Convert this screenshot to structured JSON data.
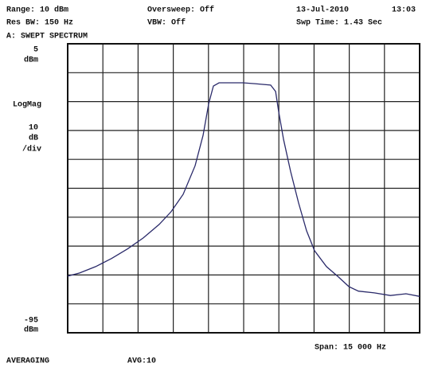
{
  "chart_data": {
    "type": "line",
    "header": {
      "range": "Range: 10 dBm",
      "oversweep": "Oversweep: Off",
      "date": "13-Jul-2010",
      "time": "13:03",
      "res_bw": "Res BW: 150 Hz",
      "vbw": "VBW: Off",
      "sweep_time": "Swp Time: 1.43 Sec"
    },
    "title": "A: SWEPT SPECTRUM",
    "y_unit": "dBm",
    "y_mode": "LogMag",
    "y_scale": [
      "10",
      "dB",
      "/div"
    ],
    "span": "Span: 15 000 Hz",
    "footer_left": "AVERAGING",
    "footer_mid": "AVG:10",
    "xlim": [
      0,
      15000
    ],
    "ylim": [
      -95,
      5
    ],
    "yticks": [
      5,
      -95
    ],
    "xgrid": [
      0,
      1500,
      3000,
      4500,
      6000,
      7500,
      9000,
      10500,
      12000,
      13500,
      15000
    ],
    "ygrid": [
      5,
      -5,
      -15,
      -25,
      -35,
      -45,
      -55,
      -65,
      -75,
      -85,
      -95
    ],
    "x": [
      0,
      510,
      1190,
      1870,
      2550,
      3220,
      3900,
      4410,
      4920,
      5430,
      5770,
      6010,
      6210,
      6450,
      6960,
      7470,
      7980,
      8650,
      8860,
      8990,
      9200,
      9500,
      9840,
      10180,
      10520,
      11030,
      11540,
      11980,
      12390,
      13070,
      13750,
      14420,
      15000
    ],
    "series": [
      {
        "color": "#2a2a6a",
        "values": [
          -75.4,
          -74.3,
          -72.1,
          -69.3,
          -66.0,
          -62.2,
          -57.5,
          -53.1,
          -47.1,
          -37.2,
          -26.7,
          -15.7,
          -9.6,
          -8.5,
          -8.5,
          -8.5,
          -8.8,
          -9.3,
          -11.5,
          -18.4,
          -28.1,
          -39.1,
          -50.1,
          -59.7,
          -66.6,
          -72.1,
          -75.7,
          -79.0,
          -80.6,
          -81.2,
          -82.1,
          -81.5,
          -82.4
        ]
      }
    ]
  }
}
